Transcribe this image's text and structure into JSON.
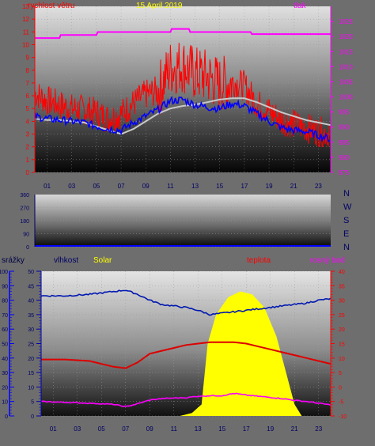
{
  "colors": {
    "wind": "#ff0000",
    "gust_avg": "#0000ff",
    "pressure": "#ff00ff",
    "avg_line": "#c8c8c8",
    "temp": "#dd0000",
    "humidity": "#0018b0",
    "dew": "#ff00ff",
    "solar": "#ffff00",
    "rain_axis": "#0000ff",
    "date": "#ffff00"
  },
  "x_ticks": [
    "01",
    "03",
    "05",
    "07",
    "09",
    "11",
    "13",
    "15",
    "17",
    "19",
    "21",
    "23"
  ],
  "chart_data": [
    {
      "type": "line",
      "title": "15 April 2019",
      "left_axis_label": "rychlost větru",
      "right_axis_label": "tlak",
      "left_ticks": [
        "0",
        "1",
        "2",
        "3",
        "4",
        "5",
        "6",
        "7",
        "8",
        "9",
        "10",
        "11",
        "12",
        "13"
      ],
      "right_ticks": [
        "975",
        "980",
        "985",
        "990",
        "995",
        "1000",
        "1005",
        "1010",
        "1015",
        "1020",
        "1025"
      ],
      "ylim_left": [
        0,
        13
      ],
      "ylim_right": [
        975,
        1030
      ],
      "x_range": [
        0,
        24
      ],
      "series": [
        {
          "name": "rychlost větru",
          "axis": "left",
          "x": [
            0,
            1,
            2,
            3,
            4,
            5,
            6,
            7,
            8,
            9,
            10,
            11,
            12,
            13,
            14,
            15,
            16,
            17,
            18,
            19,
            20,
            21,
            22,
            23,
            24
          ],
          "values": [
            6.2,
            5.6,
            5.3,
            5.0,
            4.9,
            4.7,
            4.2,
            4.6,
            5.4,
            6.1,
            6.4,
            8.2,
            8.4,
            7.7,
            7.5,
            6.9,
            7.1,
            6.8,
            5.4,
            4.8,
            4.1,
            3.8,
            3.5,
            3.2,
            3.1
          ]
        },
        {
          "axis": "left",
          "x": [
            0,
            1,
            2,
            3,
            4,
            5,
            6,
            7,
            8,
            9,
            10,
            11,
            12,
            13,
            14,
            15,
            16,
            17,
            18,
            19,
            20,
            21,
            22,
            23,
            24
          ],
          "values": [
            4.4,
            4.2,
            4.1,
            4.0,
            3.9,
            3.6,
            3.4,
            3.3,
            3.9,
            4.4,
            4.9,
            5.6,
            5.7,
            5.3,
            5.1,
            5.0,
            5.4,
            5.2,
            4.6,
            4.0,
            3.5,
            3.3,
            3.2,
            2.9,
            2.6
          ]
        },
        {
          "axis": "left",
          "x": [
            0,
            1,
            2,
            3,
            4,
            5,
            6,
            7,
            8,
            9,
            10,
            11,
            12,
            13,
            14,
            15,
            16,
            17,
            18,
            19,
            20,
            21,
            22,
            23,
            24
          ],
          "values": [
            4.2,
            4.1,
            4.1,
            4.0,
            3.9,
            3.6,
            3.3,
            3.0,
            3.4,
            4.0,
            4.6,
            5.0,
            5.2,
            5.3,
            5.5,
            5.7,
            5.8,
            5.8,
            5.5,
            5.1,
            4.7,
            4.4,
            4.1,
            3.9,
            3.7
          ]
        },
        {
          "name": "tlak",
          "axis": "right",
          "x": [
            0,
            2,
            2.1,
            5,
            5.1,
            11,
            11.1,
            12.5,
            12.6,
            17.5,
            17.6,
            24
          ],
          "values": [
            1019.5,
            1019.5,
            1020.5,
            1020.5,
            1021.5,
            1021.5,
            1022.5,
            1022.5,
            1021.5,
            1021.5,
            1020.8,
            1020.8
          ]
        }
      ]
    },
    {
      "type": "line",
      "right_axis_label_letters": [
        "N",
        "W",
        "S",
        "E",
        "N"
      ],
      "left_ticks": [
        "0",
        "90",
        "180",
        "270",
        "360"
      ],
      "ylim": [
        0,
        360
      ],
      "series": [
        {
          "axis": "left",
          "x": [
            0,
            24
          ],
          "values": [
            0,
            0
          ]
        }
      ]
    },
    {
      "type": "area",
      "labels": {
        "rain": "srážky",
        "humidity": "vlhkost",
        "solar": "Solar",
        "temp": "teplota",
        "dew": "rosný bod"
      },
      "rain_ticks": [
        "0",
        "10",
        "20",
        "30",
        "40",
        "50",
        "60",
        "70",
        "80",
        "90",
        "100"
      ],
      "humidity_ticks": [
        "0",
        "5",
        "10",
        "15",
        "20",
        "25",
        "30",
        "35",
        "40",
        "45",
        "50"
      ],
      "temp_ticks": [
        "-10",
        "-5",
        "0",
        "5",
        "10",
        "15",
        "20",
        "25",
        "30",
        "35",
        "40"
      ],
      "ylim_rain": [
        0,
        100
      ],
      "ylim_humidity": [
        0,
        50
      ],
      "ylim_temp": [
        -10,
        40
      ],
      "series": [
        {
          "name": "teplota",
          "axis": "temp",
          "x": [
            0,
            2,
            4,
            6,
            7,
            8,
            9,
            10,
            11,
            12,
            13,
            14,
            15,
            16,
            17,
            18,
            19,
            20,
            21,
            22,
            23,
            24
          ],
          "values": [
            9.5,
            9.5,
            9.0,
            7.0,
            6.5,
            8.5,
            11.5,
            12.5,
            13.5,
            14.5,
            15.0,
            15.5,
            15.5,
            15.5,
            15.0,
            14.0,
            13.0,
            12.0,
            11.0,
            10.0,
            9.0,
            8.0
          ]
        },
        {
          "name": "vlhkost",
          "axis": "humidity",
          "x": [
            0,
            2,
            4,
            6,
            7,
            8,
            9,
            10,
            11,
            12,
            13,
            14,
            15,
            16,
            17,
            18,
            19,
            20,
            21,
            22,
            23,
            24
          ],
          "values": [
            41.5,
            41.5,
            42.0,
            43.0,
            43.5,
            42.0,
            40.0,
            38.5,
            38.0,
            37.5,
            36.5,
            35.0,
            35.5,
            36.0,
            36.5,
            37.0,
            37.5,
            38.0,
            38.5,
            39.0,
            40.0,
            40.5
          ]
        },
        {
          "name": "rosný bod",
          "axis": "temp",
          "x": [
            0,
            2,
            4,
            6,
            7,
            8,
            9,
            10,
            11,
            12,
            13,
            14,
            15,
            16,
            17,
            18,
            19,
            20,
            21,
            22,
            23,
            24
          ],
          "values": [
            -5.0,
            -5.3,
            -5.6,
            -6.0,
            -6.8,
            -5.8,
            -4.5,
            -4.0,
            -3.8,
            -3.7,
            -3.2,
            -3.0,
            -3.0,
            -2.2,
            -2.8,
            -3.2,
            -3.6,
            -4.0,
            -4.6,
            -5.0,
            -5.6,
            -6.2
          ]
        },
        {
          "name": "Solar",
          "axis": "rain",
          "x": [
            11.5,
            12.5,
            13.3,
            13.8,
            14.5,
            15.5,
            16.5,
            17.5,
            18.5,
            19.5,
            20.3,
            21.0,
            21.6
          ],
          "values": [
            0,
            2,
            8,
            50,
            70,
            82,
            86,
            84,
            75,
            55,
            30,
            8,
            0
          ]
        }
      ]
    }
  ]
}
